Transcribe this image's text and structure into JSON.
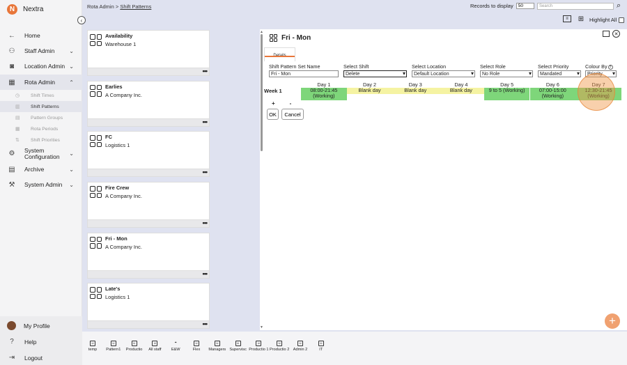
{
  "app": {
    "name": "Nextra",
    "logo_letter": "N",
    "accent": "#e8763a"
  },
  "sidebar": {
    "items": [
      {
        "label": "Home",
        "icon": "arrow-left-icon",
        "glyph": "←",
        "chevron": ""
      },
      {
        "label": "Staff Admin",
        "icon": "staff-icon",
        "glyph": "⚇",
        "chevron": "⌄"
      },
      {
        "label": "Location Admin",
        "icon": "location-icon",
        "glyph": "◙",
        "chevron": "⌄"
      },
      {
        "label": "Rota Admin",
        "icon": "calendar-icon",
        "glyph": "▦",
        "chevron": "⌃"
      }
    ],
    "subitems": [
      "Shift Times",
      "Shift Patterns",
      "Pattern Groups",
      "Rota Periods",
      "Shift Priorities"
    ],
    "items_after": [
      {
        "label": "System Configuration",
        "icon": "gear-icon",
        "glyph": "⚙",
        "chevron": "⌄"
      },
      {
        "label": "Archive",
        "icon": "archive-icon",
        "glyph": "▤",
        "chevron": "⌄"
      },
      {
        "label": "System Admin",
        "icon": "wrench-icon",
        "glyph": "⚒",
        "chevron": "⌄"
      }
    ],
    "bottom": [
      {
        "label": "My Profile"
      },
      {
        "label": "Help",
        "glyph": "?"
      },
      {
        "label": "Logout",
        "glyph": "⇥"
      }
    ]
  },
  "topbar": {
    "breadcrumb_root": "Rota Admin > ",
    "breadcrumb_current": "Shift Patterns",
    "records_label": "Records to display",
    "records_value": "50",
    "search_placeholder": "Search",
    "highlight_all": "Highlight All"
  },
  "cards": [
    {
      "title": "Availability",
      "subtitle": "Warehouse 1"
    },
    {
      "title": "Earlies",
      "subtitle": "A Company Inc."
    },
    {
      "title": "FC",
      "subtitle": "Logistics 1"
    },
    {
      "title": "Fire Crew",
      "subtitle": "A Company Inc."
    },
    {
      "title": "Fri - Mon",
      "subtitle": "A Company Inc."
    },
    {
      "title": "Late's",
      "subtitle": "Logistics 1"
    }
  ],
  "card_more": "•••",
  "detail": {
    "title": "Fri - Mon",
    "tab": "Details",
    "fields": {
      "set_name_label": "Shift Pattern Set Name",
      "set_name_value": "Fri - Mon",
      "shift_label": "Select Shift",
      "shift_value": "Delete",
      "location_label": "Select Location",
      "location_value": "Default Location",
      "role_label": "Select Role",
      "role_value": "No Role",
      "priority_label": "Select Priority",
      "priority_value": "Mandated",
      "colour_label": "Colour By",
      "colour_value": "Priority"
    },
    "week_label": "Week 1",
    "days": [
      {
        "head": "Day 1",
        "line1": "08:00-21:45",
        "line2": "(Working)",
        "kind": "working"
      },
      {
        "head": "Day 2",
        "line1": "Blank day",
        "line2": "",
        "kind": "blank"
      },
      {
        "head": "Day 3",
        "line1": "Blank day",
        "line2": "",
        "kind": "blank"
      },
      {
        "head": "Day 4",
        "line1": "Blank day",
        "line2": "",
        "kind": "blank"
      },
      {
        "head": "Day 5",
        "line1": "9 to 5 (Working)",
        "line2": "",
        "kind": "working"
      },
      {
        "head": "Day 6",
        "line1": "07:00-15:00",
        "line2": "(Working)",
        "kind": "working"
      },
      {
        "head": "Day 7",
        "line1": "12:30-21:45",
        "line2": "(Working)",
        "kind": "working"
      }
    ],
    "plus": "+",
    "minus": "-",
    "ok": "OK",
    "cancel": "Cancel"
  },
  "shortcuts": [
    {
      "label": "temp",
      "icon": "user-icon"
    },
    {
      "label": "Pattern1",
      "icon": "user-icon"
    },
    {
      "label": "Productio",
      "icon": "user-icon"
    },
    {
      "label": "All staff",
      "icon": "user-icon"
    },
    {
      "label": "E&W",
      "icon": "location-pin-icon"
    },
    {
      "label": "Flex",
      "icon": "user-icon"
    },
    {
      "label": "Managers",
      "icon": "user-icon"
    },
    {
      "label": "Supervisc",
      "icon": "user-icon"
    },
    {
      "label": "Productio 1",
      "icon": "user-icon"
    },
    {
      "label": "Productio 2",
      "icon": "user-icon"
    },
    {
      "label": "Admin 2",
      "icon": "user-icon"
    },
    {
      "label": "IT",
      "icon": "user-icon"
    }
  ]
}
